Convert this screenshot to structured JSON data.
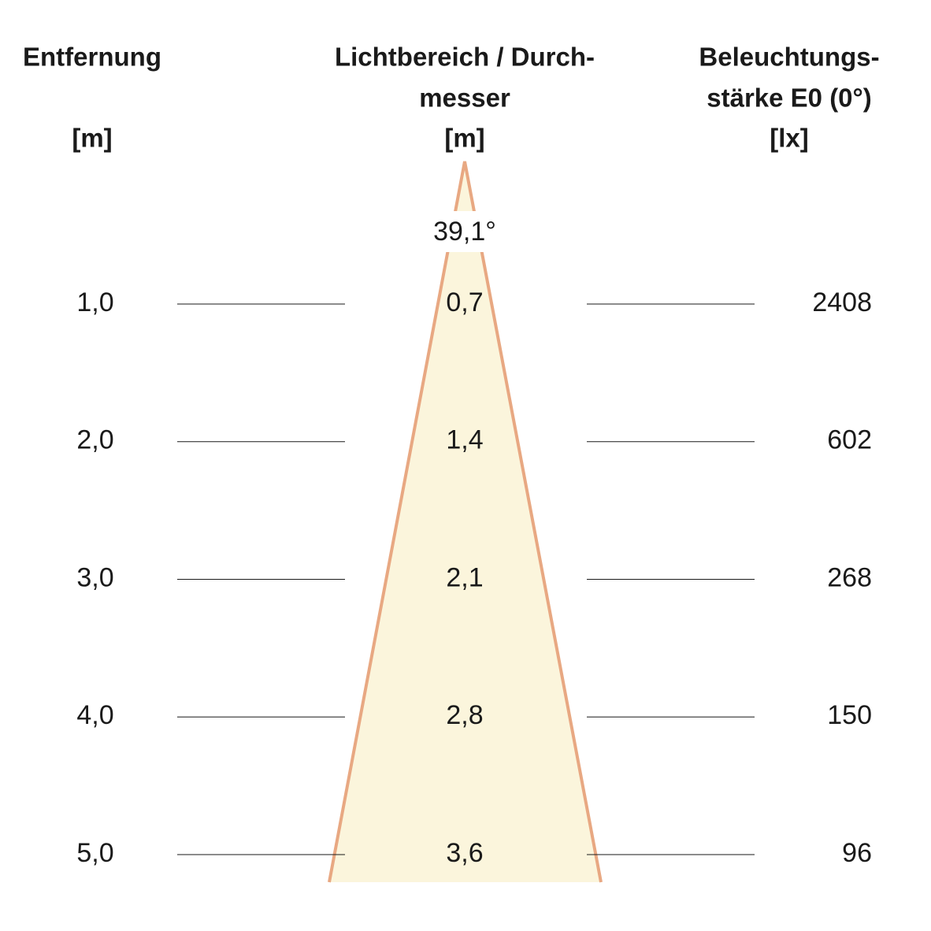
{
  "headers": {
    "distance": [
      "Entfernung",
      "[m]"
    ],
    "diameter": [
      "Lichtbereich / Durch-",
      "messer",
      "[m]"
    ],
    "illuminance": [
      "Beleuchtungs-",
      "stärke E0 (0°)",
      "[lx]"
    ]
  },
  "beam_angle": "39,1°",
  "rows": [
    {
      "distance": "1,0",
      "diameter": "0,7",
      "illuminance": "2408"
    },
    {
      "distance": "2,0",
      "diameter": "1,4",
      "illuminance": "602"
    },
    {
      "distance": "3,0",
      "diameter": "2,1",
      "illuminance": "268"
    },
    {
      "distance": "4,0",
      "diameter": "2,8",
      "illuminance": "150"
    },
    {
      "distance": "5,0",
      "diameter": "3,6",
      "illuminance": "96"
    }
  ]
}
